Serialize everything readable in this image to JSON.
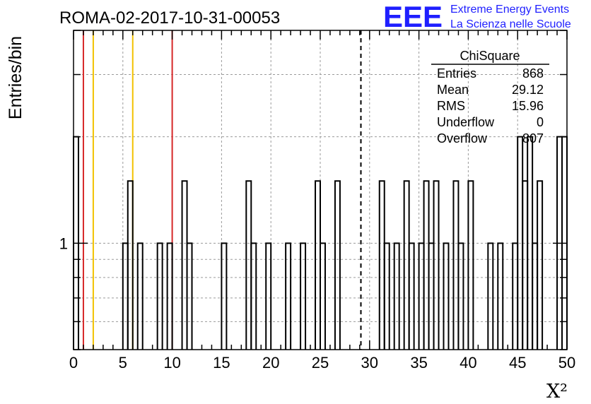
{
  "header": {
    "run_title": "ROMA-02-2017-10-31-00053",
    "logo_text": "EEE",
    "logo_line1": "Extreme Energy Events",
    "logo_line2": "La Scienza nelle Scuole",
    "logo_color": "#1f1fff"
  },
  "stats": {
    "title": "ChiSquare",
    "rows": [
      {
        "label": "Entries",
        "value": "868"
      },
      {
        "label": "Mean",
        "value": "29.12"
      },
      {
        "label": "RMS",
        "value": "15.96"
      },
      {
        "label": "Underflow",
        "value": "0"
      },
      {
        "label": "Overflow",
        "value": "807"
      }
    ]
  },
  "chart_data": {
    "type": "bar",
    "histogram": true,
    "xlabel": "Χ²",
    "ylabel": "Entries/bin",
    "xlim": [
      0,
      50
    ],
    "ylog": true,
    "ylim": [
      0.5,
      4.0
    ],
    "xticks": [
      0,
      5,
      10,
      15,
      20,
      25,
      30,
      35,
      40,
      45,
      50
    ],
    "yticks": [
      1
    ],
    "grid": true,
    "bin_width": 0.5,
    "bins": [
      {
        "x": 0.0,
        "y": 2
      },
      {
        "x": 5.0,
        "y": 1
      },
      {
        "x": 5.5,
        "y": 1.5
      },
      {
        "x": 6.5,
        "y": 1
      },
      {
        "x": 8.5,
        "y": 1
      },
      {
        "x": 9.5,
        "y": 1
      },
      {
        "x": 11.0,
        "y": 1.5
      },
      {
        "x": 11.5,
        "y": 1
      },
      {
        "x": 15.0,
        "y": 1
      },
      {
        "x": 17.5,
        "y": 1.5
      },
      {
        "x": 18.0,
        "y": 1
      },
      {
        "x": 19.5,
        "y": 1
      },
      {
        "x": 21.5,
        "y": 1
      },
      {
        "x": 23.0,
        "y": 1
      },
      {
        "x": 24.5,
        "y": 1.5
      },
      {
        "x": 25.0,
        "y": 1
      },
      {
        "x": 26.5,
        "y": 1.5
      },
      {
        "x": 31.0,
        "y": 1.5
      },
      {
        "x": 31.5,
        "y": 1
      },
      {
        "x": 32.5,
        "y": 1
      },
      {
        "x": 33.5,
        "y": 1.5
      },
      {
        "x": 34.0,
        "y": 1
      },
      {
        "x": 35.0,
        "y": 1
      },
      {
        "x": 35.5,
        "y": 1.5
      },
      {
        "x": 36.0,
        "y": 1
      },
      {
        "x": 36.5,
        "y": 1.5
      },
      {
        "x": 37.5,
        "y": 1
      },
      {
        "x": 38.5,
        "y": 1.5
      },
      {
        "x": 39.0,
        "y": 1
      },
      {
        "x": 40.0,
        "y": 1.5
      },
      {
        "x": 42.0,
        "y": 1
      },
      {
        "x": 43.0,
        "y": 1
      },
      {
        "x": 44.5,
        "y": 1
      },
      {
        "x": 45.0,
        "y": 2
      },
      {
        "x": 45.5,
        "y": 1.5
      },
      {
        "x": 46.0,
        "y": 2
      },
      {
        "x": 46.5,
        "y": 1
      },
      {
        "x": 47.0,
        "y": 1.5
      },
      {
        "x": 49.0,
        "y": 2
      },
      {
        "x": 49.5,
        "y": 2
      }
    ],
    "markers": [
      {
        "x": 1,
        "color": "#d62728",
        "style": "solid"
      },
      {
        "x": 10,
        "color": "#d62728",
        "style": "solid"
      },
      {
        "x": 2,
        "color": "#f2c200",
        "style": "solid"
      },
      {
        "x": 6,
        "color": "#f2c200",
        "style": "solid"
      },
      {
        "x": 29.12,
        "color": "#000000",
        "style": "dashed"
      }
    ]
  }
}
